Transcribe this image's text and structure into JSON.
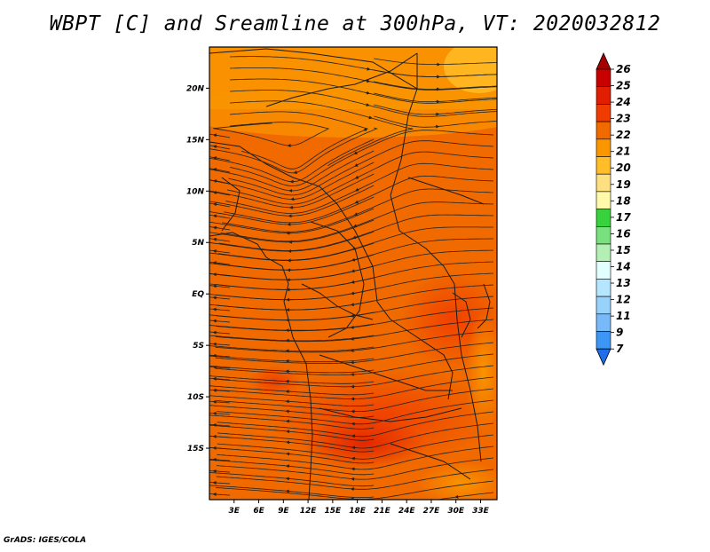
{
  "title": "WBPT [C] and Sreamline at 300hPa, VT: 2020032812",
  "credit": "GrADS: IGES/COLA",
  "map": {
    "lon_range": [
      0,
      35
    ],
    "lat_range": [
      -20,
      24
    ],
    "lat_ticks": [
      {
        "value": 20,
        "label": "20N"
      },
      {
        "value": 15,
        "label": "15N"
      },
      {
        "value": 10,
        "label": "10N"
      },
      {
        "value": 5,
        "label": "5N"
      },
      {
        "value": 0,
        "label": "EQ"
      },
      {
        "value": -5,
        "label": "5S"
      },
      {
        "value": -10,
        "label": "10S"
      },
      {
        "value": -15,
        "label": "15S"
      }
    ],
    "lon_ticks": [
      {
        "value": 3,
        "label": "3E"
      },
      {
        "value": 6,
        "label": "6E"
      },
      {
        "value": 9,
        "label": "9E"
      },
      {
        "value": 12,
        "label": "12E"
      },
      {
        "value": 15,
        "label": "15E"
      },
      {
        "value": 18,
        "label": "18E"
      },
      {
        "value": 21,
        "label": "21E"
      },
      {
        "value": 24,
        "label": "24E"
      },
      {
        "value": 27,
        "label": "27E"
      },
      {
        "value": 30,
        "label": "30E"
      },
      {
        "value": 33,
        "label": "33E"
      }
    ],
    "base_color": "#f06a00"
  },
  "colorbar": {
    "levels": [
      {
        "label": "26",
        "color": "#a50000"
      },
      {
        "label": "25",
        "color": "#c80000"
      },
      {
        "label": "24",
        "color": "#e11e00"
      },
      {
        "label": "23",
        "color": "#f03c00"
      },
      {
        "label": "22",
        "color": "#f06a00"
      },
      {
        "label": "21",
        "color": "#fa9600"
      },
      {
        "label": "20",
        "color": "#ffbe28"
      },
      {
        "label": "19",
        "color": "#ffe080"
      },
      {
        "label": "18",
        "color": "#fffaaa"
      },
      {
        "label": "17",
        "color": "#37d23c"
      },
      {
        "label": "16",
        "color": "#78e17d"
      },
      {
        "label": "15",
        "color": "#b4f0b4"
      },
      {
        "label": "14",
        "color": "#e1ffff"
      },
      {
        "label": "13",
        "color": "#b4e6ff"
      },
      {
        "label": "12",
        "color": "#96d2fa"
      },
      {
        "label": "11",
        "color": "#78b9fa"
      },
      {
        "label": "9",
        "color": "#3c96f5"
      },
      {
        "label": "7",
        "color": "#1e6eeb"
      }
    ]
  }
}
